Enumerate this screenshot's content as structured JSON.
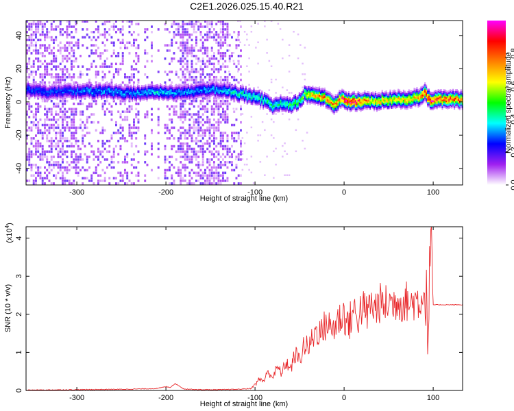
{
  "title": "C2E1.2026.025.15.40.R21",
  "chart_data": [
    {
      "type": "heatmap",
      "xlabel": "Height of straight line (km)",
      "ylabel": "Frequency (Hz)",
      "xlim": [
        -357,
        133
      ],
      "ylim": [
        -50,
        49
      ],
      "x_ticks": [
        -300,
        -200,
        -100,
        0,
        100
      ],
      "x_tick_labels": [
        "-300",
        "-200",
        "-100",
        "0",
        "100"
      ],
      "y_ticks": [
        -40,
        -20,
        0,
        20,
        40
      ],
      "y_tick_labels": [
        "-40",
        "-20",
        "0",
        "20",
        "40"
      ],
      "colorbar": {
        "label": "Normalized spectral amplitude",
        "range": [
          0,
          1
        ],
        "ticks": [
          0,
          0.2,
          0.4,
          0.6,
          0.8
        ],
        "tick_labels": [
          "0.0",
          "0.2",
          "0.4",
          "0.6",
          "0.8"
        ],
        "colors": [
          "#ffffff",
          "#a020f0",
          "#0000ff",
          "#00ffff",
          "#00ff00",
          "#ffff00",
          "#ff8000",
          "#ff0000",
          "#ff00ff"
        ]
      },
      "ridge": {
        "x": [
          -350,
          -330,
          -310,
          -290,
          -270,
          -250,
          -230,
          -210,
          -190,
          -170,
          -150,
          -130,
          -115,
          -100,
          -90,
          -80,
          -70,
          -60,
          -50,
          -45,
          -40,
          -30,
          -20,
          -12,
          -5,
          0,
          10,
          30,
          60,
          80,
          90,
          95,
          100,
          133
        ],
        "y": [
          7,
          5,
          6,
          6,
          6,
          5,
          5,
          6,
          5,
          6,
          7,
          6,
          4,
          3,
          0,
          -3,
          -1,
          -2,
          0,
          5,
          4,
          3,
          2,
          -3,
          2,
          0,
          0,
          0,
          1,
          2,
          5,
          1,
          1,
          1
        ],
        "amplitude": [
          0.3,
          0.3,
          0.3,
          0.35,
          0.35,
          0.35,
          0.35,
          0.4,
          0.35,
          0.35,
          0.35,
          0.4,
          0.45,
          0.45,
          0.45,
          0.45,
          0.45,
          0.5,
          0.5,
          0.6,
          0.7,
          0.75,
          0.8,
          0.8,
          0.85,
          0.95,
          0.95,
          0.7,
          0.7,
          0.75,
          0.9,
          1.0,
          0.9,
          0.8
        ]
      }
    },
    {
      "type": "line",
      "xlabel": "Height of straight line (km)",
      "ylabel": "SNR (10 * v/v)",
      "y_multiplier": "(x10",
      "y_multiplier_exp": "4",
      "y_multiplier_close": ")",
      "xlim": [
        -357,
        133
      ],
      "ylim": [
        0,
        4.3
      ],
      "x_ticks": [
        -300,
        -200,
        -100,
        0,
        100
      ],
      "x_tick_labels": [
        "-300",
        "-200",
        "-100",
        "0",
        "100"
      ],
      "y_ticks": [
        0,
        1,
        2,
        3,
        4
      ],
      "y_tick_labels": [
        "0",
        "1",
        "2",
        "3",
        "4"
      ],
      "series": [
        {
          "color": "#e8282b",
          "x": [
            -357,
            -300,
            -250,
            -210,
            -200,
            -195,
            -190,
            -185,
            -180,
            -160,
            -140,
            -120,
            -105,
            -100,
            -95,
            -90,
            -85,
            -80,
            -75,
            -70,
            -65,
            -60,
            -55,
            -50,
            -45,
            -40,
            -35,
            -30,
            -25,
            -20,
            -15,
            -10,
            -5,
            0,
            5,
            10,
            15,
            20,
            25,
            30,
            35,
            40,
            45,
            50,
            55,
            60,
            65,
            70,
            75,
            80,
            85,
            88,
            92,
            95,
            97,
            100,
            110,
            120,
            133
          ],
          "y": [
            0.01,
            0.02,
            0.03,
            0.05,
            0.1,
            0.08,
            0.18,
            0.12,
            0.04,
            0.02,
            0.02,
            0.03,
            0.05,
            0.15,
            0.3,
            0.25,
            0.5,
            0.35,
            0.6,
            0.45,
            0.75,
            0.55,
            0.95,
            0.8,
            1.2,
            1.1,
            1.4,
            1.6,
            1.5,
            1.8,
            1.6,
            1.7,
            1.9,
            2.0,
            1.7,
            2.1,
            1.9,
            2.2,
            2.0,
            2.25,
            2.15,
            2.3,
            2.2,
            2.35,
            2.25,
            2.4,
            2.3,
            2.35,
            2.25,
            2.4,
            2.3,
            2.6,
            2.2,
            1.5,
            4.2,
            2.25,
            2.25,
            2.25,
            2.25
          ]
        }
      ]
    }
  ]
}
